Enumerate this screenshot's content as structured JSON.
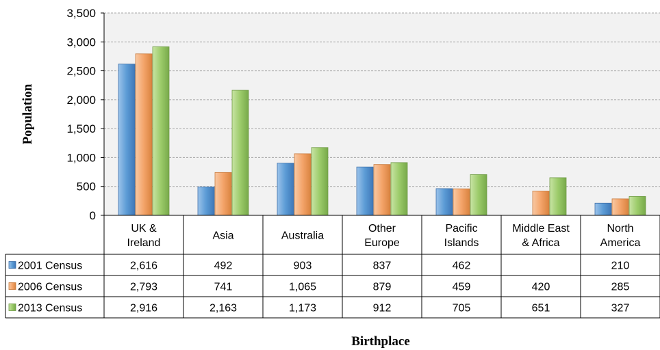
{
  "chart_data": {
    "type": "bar",
    "ylabel": "Population",
    "xlabel": "Birthplace",
    "ylim": [
      0,
      3500
    ],
    "yticks": [
      0,
      500,
      1000,
      1500,
      2000,
      2500,
      3000,
      3500
    ],
    "ytick_labels": [
      "0",
      "500",
      "1,000",
      "1,500",
      "2,000",
      "2,500",
      "3,000",
      "3,500"
    ],
    "grid": true,
    "legend": "data-table",
    "categories": [
      [
        "UK &",
        "Ireland"
      ],
      [
        "Asia"
      ],
      [
        "Australia"
      ],
      [
        "Other",
        "Europe"
      ],
      [
        "Pacific",
        "Islands"
      ],
      [
        "Middle East",
        "& Africa"
      ],
      [
        "North",
        "America"
      ]
    ],
    "series": [
      {
        "name": "2001 Census",
        "values": [
          2616,
          492,
          903,
          837,
          462,
          null,
          210
        ],
        "labels": [
          "2,616",
          "492",
          "903",
          "837",
          "462",
          "",
          "210"
        ],
        "color": "#5b9bd5"
      },
      {
        "name": "2006 Census",
        "values": [
          2793,
          741,
          1065,
          879,
          459,
          420,
          285
        ],
        "labels": [
          "2,793",
          "741",
          "1,065",
          "879",
          "459",
          "420",
          "285"
        ],
        "color": "#f4a46a"
      },
      {
        "name": "2013 Census",
        "values": [
          2916,
          2163,
          1173,
          912,
          705,
          651,
          327
        ],
        "labels": [
          "2,916",
          "2,163",
          "1,173",
          "912",
          "705",
          "651",
          "327"
        ],
        "color": "#9ccb6a"
      }
    ]
  }
}
